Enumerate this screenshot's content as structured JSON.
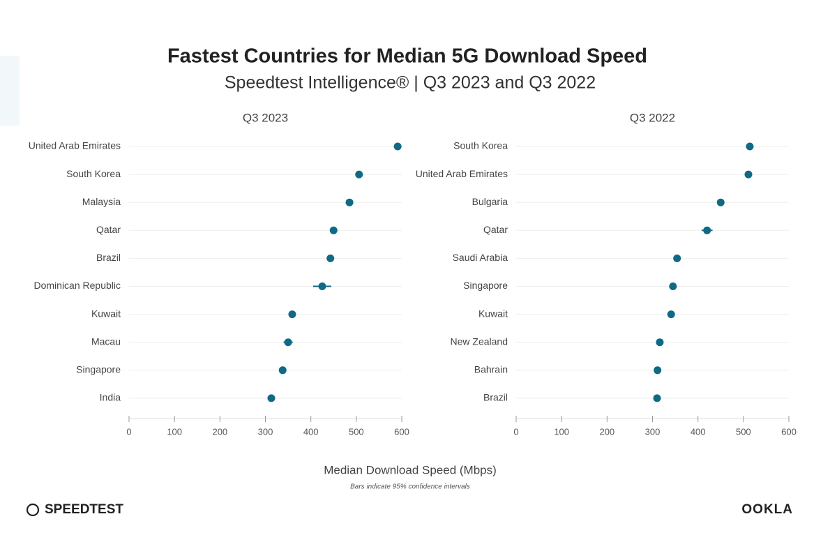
{
  "title": "Fastest Countries for Median 5G Download Speed",
  "subtitle": "Speedtest Intelligence® | Q3 2023 and Q3 2022",
  "xlabel": "Median Download Speed (Mbps)",
  "note": "Bars indicate 95% confidence intervals",
  "brand_left": "SPEEDTEST",
  "brand_right": "OOKLA",
  "chart_data": [
    {
      "type": "dot",
      "title": "Q3 2023",
      "categories": [
        "United Arab Emirates",
        "South Korea",
        "Malaysia",
        "Qatar",
        "Brazil",
        "Dominican Republic",
        "Kuwait",
        "Macau",
        "Singapore",
        "India"
      ],
      "values": [
        591,
        506,
        485,
        450,
        443,
        425,
        359,
        350,
        338,
        313
      ],
      "errors": [
        3,
        3,
        3,
        8,
        3,
        20,
        3,
        10,
        3,
        3
      ],
      "color": "#0e6a85",
      "xlim": [
        0,
        600
      ],
      "xticks": [
        0,
        100,
        200,
        300,
        400,
        500,
        600
      ],
      "grid": true
    },
    {
      "type": "dot",
      "title": "Q3 2022",
      "categories": [
        "South Korea",
        "United Arab Emirates",
        "Bulgaria",
        "Qatar",
        "Saudi Arabia",
        "Singapore",
        "Kuwait",
        "New Zealand",
        "Bahrain",
        "Brazil"
      ],
      "values": [
        514,
        511,
        450,
        420,
        354,
        345,
        341,
        316,
        311,
        310
      ],
      "errors": [
        4,
        3,
        3,
        12,
        3,
        4,
        3,
        3,
        3,
        3
      ],
      "color": "#0e6a85",
      "xlim": [
        0,
        600
      ],
      "xticks": [
        0,
        100,
        200,
        300,
        400,
        500,
        600
      ],
      "grid": true
    }
  ]
}
